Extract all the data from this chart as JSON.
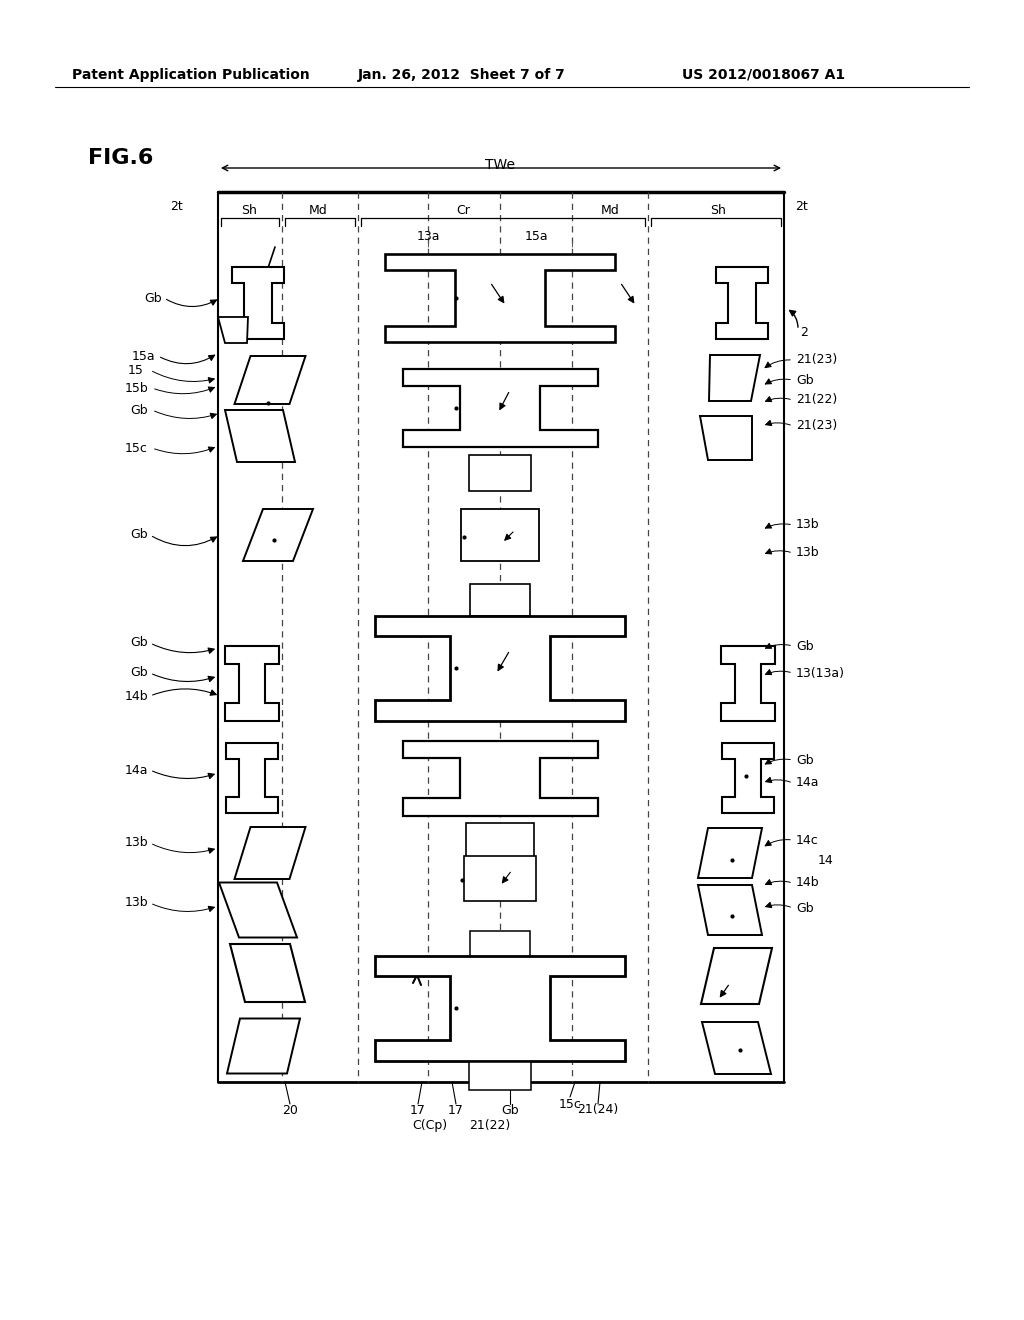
{
  "header_left": "Patent Application Publication",
  "header_mid": "Jan. 26, 2012  Sheet 7 of 7",
  "header_right": "US 2012/0018067 A1",
  "fig_label": "FIG.6",
  "bg": "#ffffff",
  "lc": "#000000"
}
